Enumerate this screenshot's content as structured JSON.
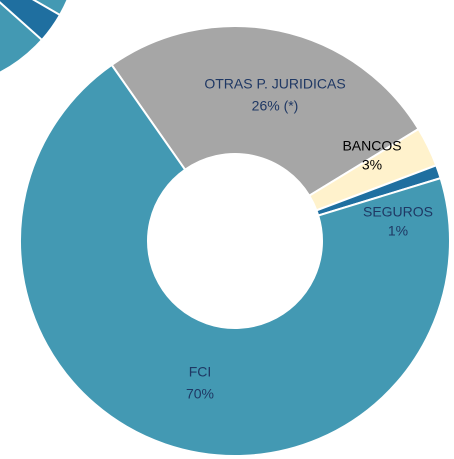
{
  "chart_data": {
    "type": "donut",
    "categories": [
      "OTRAS P. JURIDICAS",
      "BANCOS",
      "SEGUROS",
      "FCI"
    ],
    "values": [
      26,
      3,
      1,
      70
    ],
    "value_labels": [
      "26% (*)",
      "3%",
      "1%",
      "70%"
    ],
    "colors": [
      "#a6a6a6",
      "#fff2cc",
      "#1f6fa0",
      "#4399b3"
    ]
  }
}
